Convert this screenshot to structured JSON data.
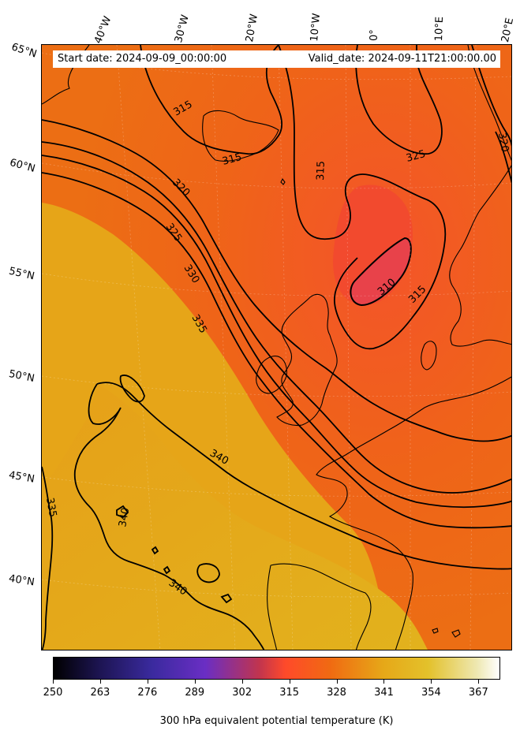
{
  "map": {
    "start_date": "Start date: 2024-09-09_00:00:00",
    "valid_date": "Valid_date: 2024-09-11T21:00:00.00",
    "longitude_labels": [
      "40°W",
      "30°W",
      "20°W",
      "10°W",
      "0°",
      "10°E",
      "20°E"
    ],
    "latitude_labels": [
      "65°N",
      "60°N",
      "55°N",
      "50°N",
      "45°N",
      "40°N"
    ],
    "contour_labels": [
      "315",
      "315",
      "315",
      "320",
      "325",
      "330",
      "335",
      "340",
      "335",
      "340",
      "340",
      "310",
      "315",
      "325",
      "320"
    ],
    "colors": {
      "cold_core": "#e8424a",
      "warm_red": "#f4542a",
      "orange": "#ec6e14",
      "amber": "#e4a117",
      "yellow": "#e3b01c"
    }
  },
  "colorbar": {
    "title": "300 hPa equivalent potential temperature (K)",
    "ticks": [
      "250",
      "263",
      "276",
      "289",
      "302",
      "315",
      "328",
      "341",
      "354",
      "367"
    ],
    "vmin": 250,
    "vmax": 373,
    "colormap": "CMRmap"
  }
}
